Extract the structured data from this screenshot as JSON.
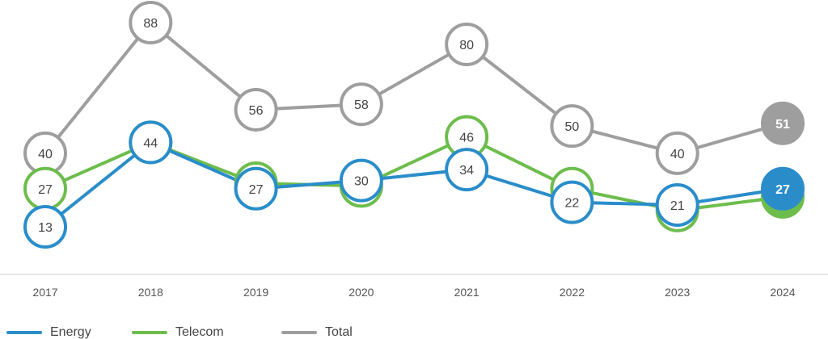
{
  "chart_data": {
    "type": "line",
    "categories": [
      "2017",
      "2018",
      "2019",
      "2020",
      "2021",
      "2022",
      "2023",
      "2024"
    ],
    "series": [
      {
        "name": "Total",
        "color": "#9e9e9e",
        "values": [
          40,
          88,
          56,
          58,
          80,
          50,
          40,
          51
        ]
      },
      {
        "name": "Telecom",
        "color": "#6dbd4c",
        "values": [
          27,
          44,
          29,
          28,
          46,
          27,
          19,
          24
        ]
      },
      {
        "name": "Energy",
        "color": "#2a8dca",
        "values": [
          13,
          44,
          27,
          30,
          34,
          22,
          21,
          27
        ]
      }
    ],
    "data_labels": true,
    "last_point_filled": true,
    "legend_position": "bottom-left",
    "grid": false,
    "title": "",
    "xlabel": "",
    "ylabel": ""
  }
}
